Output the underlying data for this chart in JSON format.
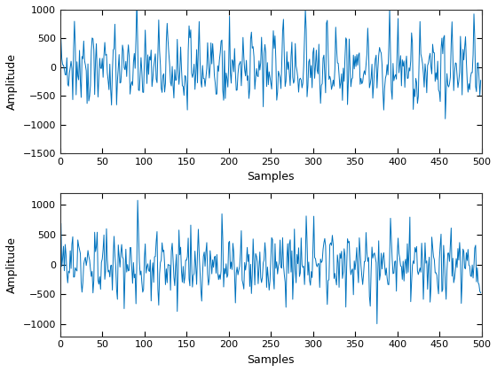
{
  "subplot1": {
    "ylabel": "Amplitude",
    "xlabel": "Samples",
    "xlim": [
      0,
      500
    ],
    "ylim": [
      -1500,
      1000
    ],
    "yticks": [
      -1500,
      -1000,
      -500,
      0,
      500,
      1000
    ],
    "xticks": [
      0,
      50,
      100,
      150,
      200,
      250,
      300,
      350,
      400,
      450,
      500
    ],
    "line_color": "#0072BD",
    "line_width": 0.7
  },
  "subplot2": {
    "ylabel": "Amplitude",
    "xlabel": "Samples",
    "xlim": [
      0,
      500
    ],
    "ylim": [
      -1200,
      1200
    ],
    "yticks": [
      -1000,
      -500,
      0,
      500,
      1000
    ],
    "xticks": [
      0,
      50,
      100,
      150,
      200,
      250,
      300,
      350,
      400,
      450,
      500
    ],
    "line_color": "#0072BD",
    "line_width": 0.7
  },
  "bg_color": "#ffffff",
  "fig_facecolor": "#ffffff",
  "tick_labelsize": 8,
  "axis_labelsize": 9,
  "n_samples": 500
}
